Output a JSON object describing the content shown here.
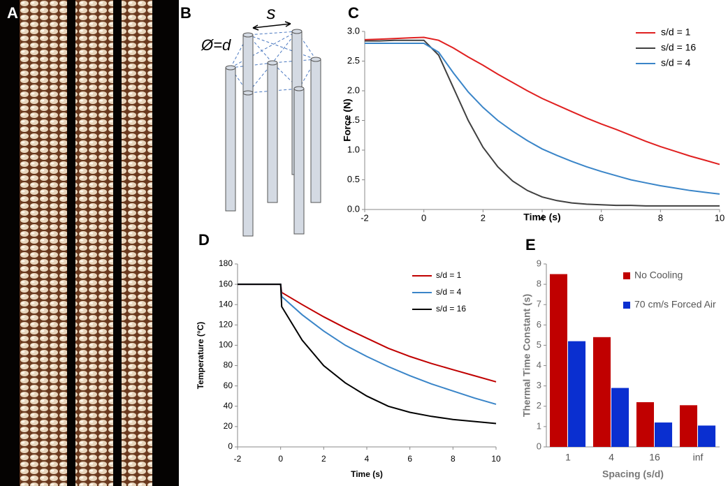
{
  "panels": {
    "a": "A",
    "b": "B"
  },
  "diagram": {
    "spacing_label": "s",
    "diameter_label": "Ø=d"
  },
  "chart_data": [
    {
      "type": "line",
      "label": "C",
      "xlabel": "Time (s)",
      "ylabel": "Force (N)",
      "xlim": [
        -2,
        10
      ],
      "ylim": [
        0,
        3
      ],
      "xticks": [
        -2,
        0,
        2,
        4,
        6,
        8,
        10
      ],
      "yticks": [
        {
          "value": 0,
          "label": "0.0"
        },
        0.5,
        {
          "value": 1,
          "label": "1.0"
        },
        1.5,
        {
          "value": 2,
          "label": "2.0"
        },
        2.5,
        {
          "value": 3,
          "label": "3.0"
        }
      ],
      "legend": "top-right",
      "x": [
        -2,
        -1.5,
        -1,
        -0.5,
        0,
        0.5,
        1,
        1.5,
        2,
        2.5,
        3,
        3.5,
        4,
        4.5,
        5,
        5.5,
        6,
        6.5,
        7,
        7.5,
        8,
        8.5,
        9,
        9.5,
        10
      ],
      "series": [
        {
          "name": "s/d = 1",
          "color": "#e02020",
          "values": [
            2.86,
            2.87,
            2.88,
            2.89,
            2.9,
            2.85,
            2.72,
            2.57,
            2.43,
            2.28,
            2.14,
            2.0,
            1.87,
            1.76,
            1.65,
            1.54,
            1.44,
            1.35,
            1.25,
            1.15,
            1.06,
            0.98,
            0.9,
            0.83,
            0.76
          ]
        },
        {
          "name": "s/d = 16",
          "color": "#404040",
          "values": [
            2.84,
            2.84,
            2.85,
            2.85,
            2.85,
            2.6,
            2.05,
            1.5,
            1.05,
            0.72,
            0.48,
            0.32,
            0.21,
            0.15,
            0.11,
            0.09,
            0.08,
            0.07,
            0.07,
            0.06,
            0.06,
            0.06,
            0.06,
            0.06,
            0.06
          ]
        },
        {
          "name": "s/d = 4",
          "color": "#3a85c8",
          "values": [
            2.8,
            2.8,
            2.8,
            2.8,
            2.8,
            2.65,
            2.3,
            1.98,
            1.72,
            1.5,
            1.32,
            1.16,
            1.02,
            0.91,
            0.81,
            0.72,
            0.64,
            0.57,
            0.5,
            0.45,
            0.4,
            0.36,
            0.32,
            0.29,
            0.26
          ]
        }
      ]
    },
    {
      "type": "line",
      "label": "D",
      "xlabel": "Time (s)",
      "ylabel": "Temperature (°C)",
      "xlim": [
        -2,
        10
      ],
      "ylim": [
        0,
        180
      ],
      "xticks": [
        -2,
        0,
        2,
        4,
        6,
        8,
        10
      ],
      "yticks": [
        0,
        20,
        40,
        60,
        80,
        100,
        120,
        140,
        160,
        180
      ],
      "legend": "top-right",
      "x": [
        -2,
        -1,
        0,
        0.05,
        1,
        2,
        3,
        4,
        5,
        6,
        7,
        8,
        9,
        10
      ],
      "series": [
        {
          "name": "s/d = 1",
          "color": "#c00000",
          "values": [
            160,
            160,
            160,
            152,
            140,
            128,
            117,
            107,
            97,
            89,
            82,
            76,
            70,
            64
          ]
        },
        {
          "name": "s/d = 4",
          "color": "#3a85c8",
          "values": [
            160,
            160,
            160,
            148,
            130,
            114,
            100,
            89,
            79,
            70,
            62,
            55,
            48,
            42
          ]
        },
        {
          "name": "s/d = 16",
          "color": "#000000",
          "values": [
            160,
            160,
            160,
            138,
            105,
            80,
            63,
            50,
            40,
            34,
            30,
            27,
            25,
            23
          ]
        }
      ]
    },
    {
      "type": "bar",
      "label": "E",
      "xlabel": "Spacing (s/d)",
      "ylabel": "Thermal Time Constant (s)",
      "ylim": [
        0,
        9
      ],
      "yticks": [
        0,
        1,
        2,
        3,
        4,
        5,
        6,
        7,
        8,
        9
      ],
      "legend": "top-right",
      "categories": [
        "1",
        "4",
        "16",
        "inf"
      ],
      "series": [
        {
          "name": "No Cooling",
          "color": "#c00000",
          "values": [
            8.5,
            5.4,
            2.2,
            2.05
          ]
        },
        {
          "name": "70 cm/s Forced Air",
          "color": "#0a2fd0",
          "values": [
            5.2,
            2.9,
            1.2,
            1.05
          ]
        }
      ]
    }
  ]
}
